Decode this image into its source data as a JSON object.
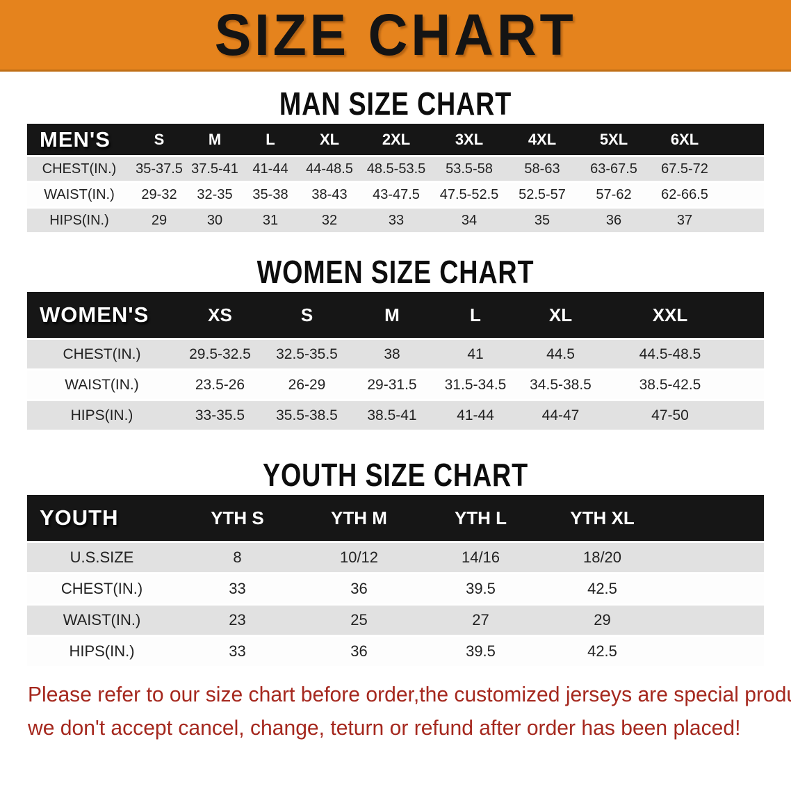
{
  "banner": {
    "title": "SIZE CHART",
    "bg_color": "#E5831D"
  },
  "sections": {
    "men": {
      "heading": "MAN SIZE CHART",
      "table": {
        "label": "MEN'S",
        "sizes": [
          "S",
          "M",
          "L",
          "XL",
          "2XL",
          "3XL",
          "4XL",
          "5XL",
          "6XL"
        ],
        "rows": [
          {
            "label": "CHEST(IN.)",
            "values": [
              "35-37.5",
              "37.5-41",
              "41-44",
              "44-48.5",
              "48.5-53.5",
              "53.5-58",
              "58-63",
              "63-67.5",
              "67.5-72"
            ]
          },
          {
            "label": "WAIST(IN.)",
            "values": [
              "29-32",
              "32-35",
              "35-38",
              "38-43",
              "43-47.5",
              "47.5-52.5",
              "52.5-57",
              "57-62",
              "62-66.5"
            ]
          },
          {
            "label": "HIPS(IN.)",
            "values": [
              "29",
              "30",
              "31",
              "32",
              "33",
              "34",
              "35",
              "36",
              "37"
            ]
          }
        ]
      }
    },
    "women": {
      "heading": "WOMEN SIZE CHART",
      "table": {
        "label": "WOMEN'S",
        "sizes": [
          "XS",
          "S",
          "M",
          "L",
          "XL",
          "XXL"
        ],
        "rows": [
          {
            "label": "CHEST(IN.)",
            "values": [
              "29.5-32.5",
              "32.5-35.5",
              "38",
              "41",
              "44.5",
              "44.5-48.5"
            ]
          },
          {
            "label": "WAIST(IN.)",
            "values": [
              "23.5-26",
              "26-29",
              "29-31.5",
              "31.5-34.5",
              "34.5-38.5",
              "38.5-42.5"
            ]
          },
          {
            "label": "HIPS(IN.)",
            "values": [
              "33-35.5",
              "35.5-38.5",
              "38.5-41",
              "41-44",
              "44-47",
              "47-50"
            ]
          }
        ]
      }
    },
    "youth": {
      "heading": "YOUTH SIZE CHART",
      "table": {
        "label": "YOUTH",
        "sizes": [
          "YTH S",
          "YTH M",
          "YTH L",
          "YTH XL"
        ],
        "rows": [
          {
            "label": "U.S.SIZE",
            "values": [
              "8",
              "10/12",
              "14/16",
              "18/20"
            ]
          },
          {
            "label": "CHEST(IN.)",
            "values": [
              "33",
              "36",
              "39.5",
              "42.5"
            ]
          },
          {
            "label": "WAIST(IN.)",
            "values": [
              "23",
              "25",
              "27",
              "29"
            ]
          },
          {
            "label": "HIPS(IN.)",
            "values": [
              "33",
              "36",
              "39.5",
              "42.5"
            ]
          }
        ]
      }
    }
  },
  "disclaimer": {
    "line1": "Please refer to our size chart before order,the customized jerseys are special products,",
    "line2": "we don't accept cancel, change, teturn or refund after order has been placed!",
    "color": "#A5281E"
  }
}
